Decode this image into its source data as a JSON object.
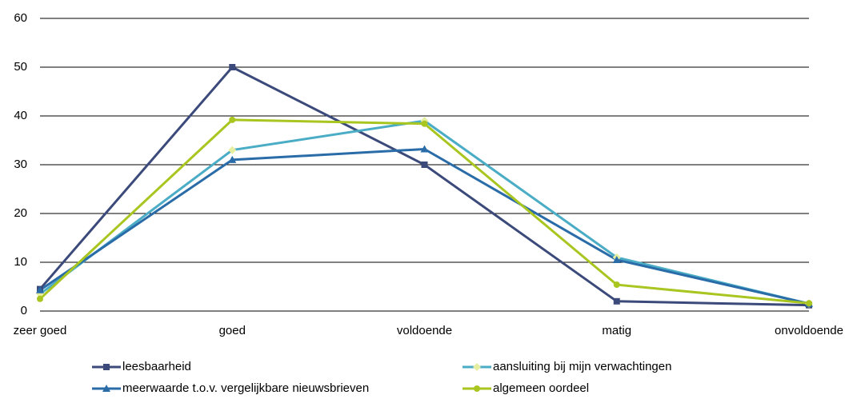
{
  "chart_data": {
    "type": "line",
    "categories": [
      "zeer goed",
      "goed",
      "voldoende",
      "matig",
      "onvoldoende"
    ],
    "series": [
      {
        "name": "leesbaarheid",
        "color": "#3b4a7a",
        "marker": "square",
        "values": [
          4.5,
          50,
          30,
          2,
          1.2
        ]
      },
      {
        "name": "aansluiting bij mijn verwachtingen",
        "color": "#4bacc6",
        "marker": "diamond",
        "values": [
          3.5,
          33,
          39,
          11,
          1.5
        ]
      },
      {
        "name": "meerwaarde t.o.v. vergelijkbare nieuwsbrieven",
        "color": "#2a6ca8",
        "marker": "triangle",
        "values": [
          4.3,
          31,
          33.2,
          10.5,
          1.5
        ]
      },
      {
        "name": "algemeen oordeel",
        "color": "#a8c520",
        "marker": "circle",
        "values": [
          2.5,
          39.2,
          38.4,
          5.4,
          1.6
        ]
      }
    ],
    "ylim": [
      0,
      60
    ],
    "yticks": [
      0,
      10,
      20,
      30,
      40,
      50,
      60
    ],
    "grid": true
  }
}
